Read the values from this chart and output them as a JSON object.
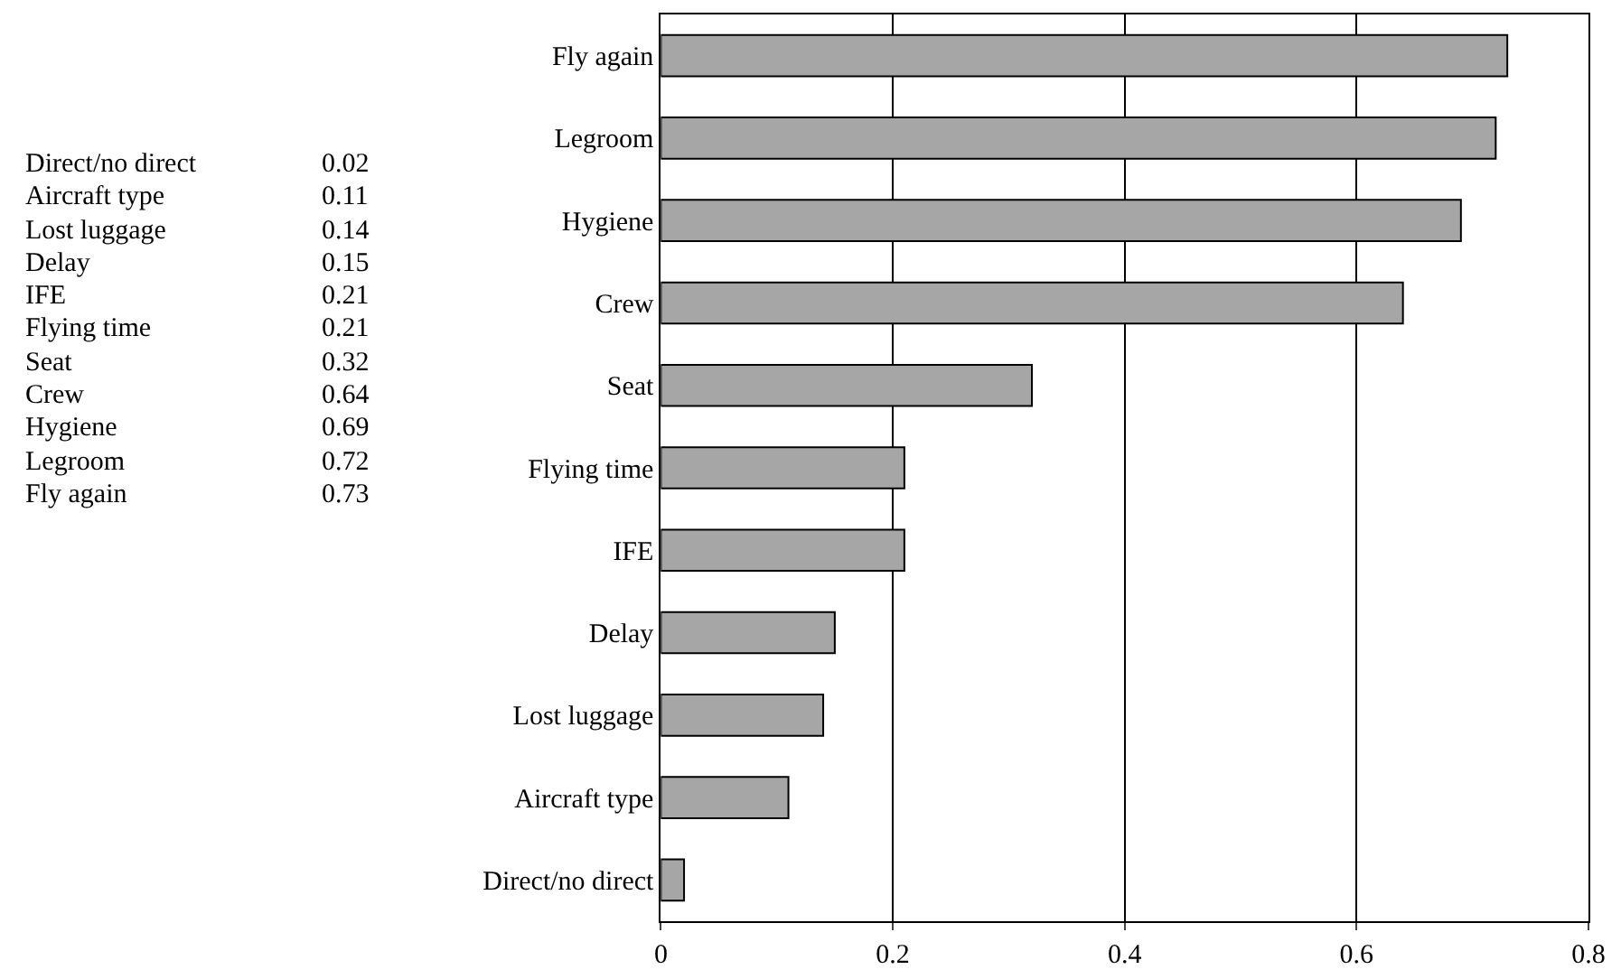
{
  "chart_data": [
    {
      "type": "other",
      "annotations": [
        "Direct/no direct",
        "0.02",
        "Aircraft type",
        "0.11",
        "Lost luggage",
        "0.14",
        "Delay",
        "0.15",
        "IFE",
        "0.21",
        "Flying time",
        "0.21",
        "Seat",
        "0.32",
        "Crew",
        "0.64",
        "Hygiene",
        "0.69",
        "Legroom",
        "0.72",
        "Fly again",
        "0.73"
      ]
    },
    {
      "type": "bar",
      "orientation": "horizontal",
      "categories": [
        "Fly again",
        "Legroom",
        "Hygiene",
        "Crew",
        "Seat",
        "Flying time",
        "IFE",
        "Delay",
        "Lost luggage",
        "Aircraft type",
        "Direct/no direct"
      ],
      "values": [
        0.73,
        0.72,
        0.69,
        0.64,
        0.32,
        0.21,
        0.21,
        0.15,
        0.14,
        0.11,
        0.02
      ],
      "color": "#a6a6a6",
      "xlim": [
        0,
        0.8
      ],
      "xticks": [
        0,
        0.2,
        0.4,
        0.6,
        0.8
      ],
      "grid": "x"
    }
  ]
}
